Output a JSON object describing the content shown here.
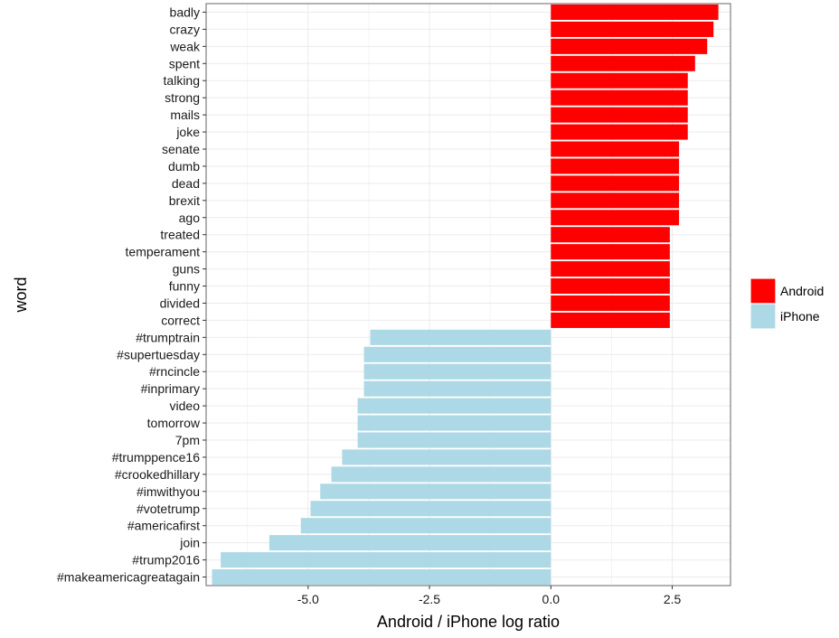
{
  "chart_data": {
    "type": "bar",
    "orientation": "horizontal",
    "xlabel": "Android / iPhone log ratio",
    "ylabel": "word",
    "xlim": [
      -7.1,
      3.7
    ],
    "x_ticks": [
      -5.0,
      -2.5,
      0.0,
      2.5
    ],
    "x_tick_labels": [
      "-5.0",
      "-2.5",
      "0.0",
      "2.5"
    ],
    "grid": true,
    "legend_position": "right",
    "legend": [
      {
        "name": "Android",
        "color": "#ff0000"
      },
      {
        "name": "iPhone",
        "color": "#add8e6"
      }
    ],
    "categories": [
      "badly",
      "crazy",
      "weak",
      "spent",
      "talking",
      "strong",
      "mails",
      "joke",
      "senate",
      "dumb",
      "dead",
      "brexit",
      "ago",
      "treated",
      "temperament",
      "guns",
      "funny",
      "divided",
      "correct",
      "#trumptrain",
      "#supertuesday",
      "#rncincle",
      "#inprimary",
      "video",
      "tomorrow",
      "7pm",
      "#trumppence16",
      "#crookedhillary",
      "#imwithyou",
      "#votetrump",
      "#americafirst",
      "join",
      "#trump2016",
      "#makeamericagreatagain"
    ],
    "values": [
      3.45,
      3.35,
      3.22,
      2.97,
      2.82,
      2.82,
      2.82,
      2.82,
      2.64,
      2.64,
      2.64,
      2.64,
      2.64,
      2.45,
      2.45,
      2.45,
      2.45,
      2.45,
      2.45,
      -3.72,
      -3.85,
      -3.85,
      -3.85,
      -3.98,
      -3.98,
      -3.98,
      -4.3,
      -4.52,
      -4.75,
      -4.95,
      -5.15,
      -5.8,
      -6.8,
      -6.98
    ],
    "groups": [
      "Android",
      "Android",
      "Android",
      "Android",
      "Android",
      "Android",
      "Android",
      "Android",
      "Android",
      "Android",
      "Android",
      "Android",
      "Android",
      "Android",
      "Android",
      "Android",
      "Android",
      "Android",
      "Android",
      "iPhone",
      "iPhone",
      "iPhone",
      "iPhone",
      "iPhone",
      "iPhone",
      "iPhone",
      "iPhone",
      "iPhone",
      "iPhone",
      "iPhone",
      "iPhone",
      "iPhone",
      "iPhone",
      "iPhone"
    ]
  }
}
